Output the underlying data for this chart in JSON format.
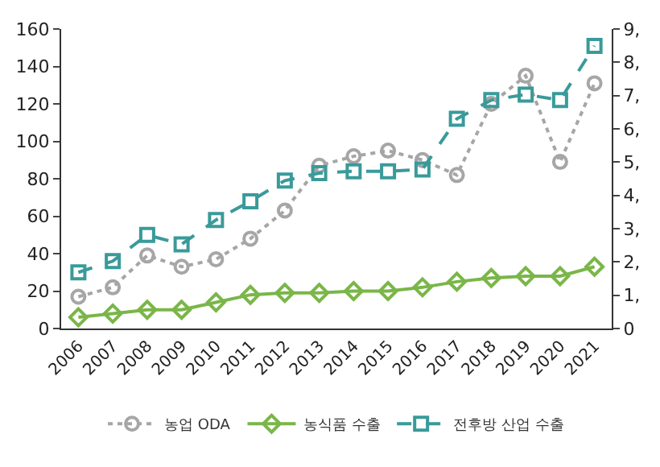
{
  "chart_data": {
    "type": "line",
    "categories": [
      "2006",
      "2007",
      "2008",
      "2009",
      "2010",
      "2011",
      "2012",
      "2013",
      "2014",
      "2015",
      "2016",
      "2017",
      "2018",
      "2019",
      "2020",
      "2021"
    ],
    "series": [
      {
        "name": "농업 ODA",
        "color": "#a6a6a6",
        "marker": "circle",
        "line_style": "dotted",
        "values": [
          17,
          22,
          39,
          33,
          37,
          48,
          63,
          87,
          92,
          95,
          90,
          82,
          120,
          135,
          89,
          131
        ]
      },
      {
        "name": "농식품 수출",
        "color": "#7ab648",
        "marker": "diamond",
        "line_style": "solid",
        "values": [
          6,
          8,
          10,
          10,
          14,
          18,
          19,
          19,
          20,
          20,
          22,
          25,
          27,
          28,
          28,
          33
        ]
      },
      {
        "name": "전후방 산업 수출",
        "color": "#3a9a9a",
        "marker": "square",
        "line_style": "dashed",
        "values": [
          30,
          36,
          50,
          45,
          58,
          68,
          79,
          83,
          84,
          84,
          85,
          112,
          122,
          125,
          122,
          151
        ]
      }
    ],
    "ylim": [
      0,
      160
    ],
    "yticks": [
      0,
      20,
      40,
      60,
      80,
      100,
      120,
      140,
      160
    ],
    "y2lim": [
      0,
      9
    ],
    "y2ticks": [
      0,
      {
        "value": 1,
        "label": "1,"
      },
      {
        "value": 2,
        "label": "2,"
      },
      {
        "value": 3,
        "label": "3,"
      },
      {
        "value": 4,
        "label": "4,"
      },
      {
        "value": 5,
        "label": "5,"
      },
      {
        "value": 6,
        "label": "6,"
      },
      {
        "value": 7,
        "label": "7,"
      },
      {
        "value": 8,
        "label": "8,"
      },
      {
        "value": 9,
        "label": "9,"
      }
    ],
    "grid": false,
    "legend": "bottom"
  }
}
